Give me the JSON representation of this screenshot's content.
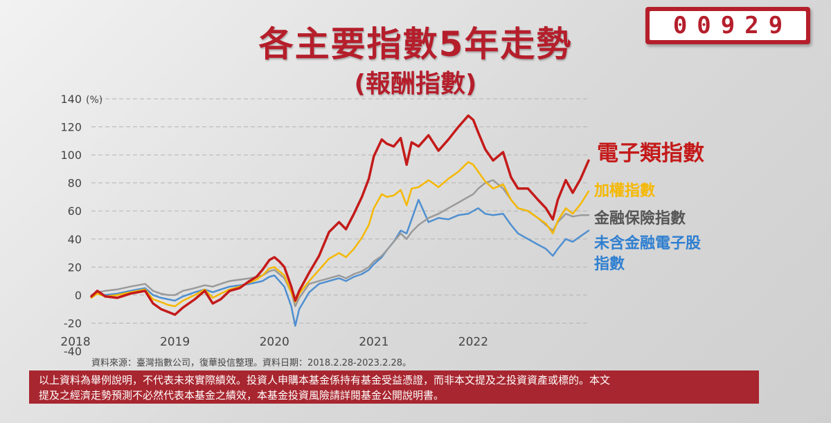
{
  "header": {
    "title": "各主要指數5年走勢",
    "subtitle": "(報酬指數)",
    "fund_code": "00929"
  },
  "chart_data": {
    "type": "line",
    "y_unit_label": "(%)",
    "ylim": [
      -40,
      140
    ],
    "yticks": [
      -40,
      -20,
      0,
      20,
      40,
      60,
      80,
      100,
      120,
      140
    ],
    "xlim": [
      2018.16,
      2023.16
    ],
    "xticks": [
      2018,
      2019,
      2020,
      2021,
      2022
    ],
    "grid": "horizontal dashed",
    "legend": "right",
    "series": [
      {
        "name": "電子類指數",
        "color": "#c41a1a",
        "points": [
          [
            2018.16,
            -1
          ],
          [
            2018.22,
            3
          ],
          [
            2018.3,
            -1
          ],
          [
            2018.42,
            -2
          ],
          [
            2018.55,
            1
          ],
          [
            2018.7,
            3
          ],
          [
            2018.78,
            -6
          ],
          [
            2018.86,
            -10
          ],
          [
            2018.93,
            -12
          ],
          [
            2019.0,
            -14
          ],
          [
            2019.08,
            -9
          ],
          [
            2019.2,
            -3
          ],
          [
            2019.3,
            3
          ],
          [
            2019.38,
            -6
          ],
          [
            2019.46,
            -3
          ],
          [
            2019.55,
            3
          ],
          [
            2019.65,
            5
          ],
          [
            2019.75,
            10
          ],
          [
            2019.82,
            13
          ],
          [
            2019.88,
            18
          ],
          [
            2019.95,
            25
          ],
          [
            2020.0,
            27
          ],
          [
            2020.05,
            24
          ],
          [
            2020.1,
            20
          ],
          [
            2020.17,
            6
          ],
          [
            2020.21,
            -4
          ],
          [
            2020.25,
            3
          ],
          [
            2020.35,
            16
          ],
          [
            2020.45,
            28
          ],
          [
            2020.55,
            45
          ],
          [
            2020.65,
            52
          ],
          [
            2020.72,
            47
          ],
          [
            2020.8,
            58
          ],
          [
            2020.88,
            70
          ],
          [
            2020.95,
            83
          ],
          [
            2021.0,
            99
          ],
          [
            2021.08,
            111
          ],
          [
            2021.13,
            108
          ],
          [
            2021.2,
            106
          ],
          [
            2021.27,
            112
          ],
          [
            2021.33,
            93
          ],
          [
            2021.38,
            109
          ],
          [
            2021.45,
            106
          ],
          [
            2021.55,
            114
          ],
          [
            2021.65,
            103
          ],
          [
            2021.75,
            111
          ],
          [
            2021.85,
            120
          ],
          [
            2021.95,
            128
          ],
          [
            2022.0,
            125
          ],
          [
            2022.05,
            116
          ],
          [
            2022.12,
            104
          ],
          [
            2022.2,
            96
          ],
          [
            2022.3,
            102
          ],
          [
            2022.38,
            84
          ],
          [
            2022.45,
            76
          ],
          [
            2022.55,
            76
          ],
          [
            2022.65,
            68
          ],
          [
            2022.73,
            62
          ],
          [
            2022.8,
            54
          ],
          [
            2022.85,
            68
          ],
          [
            2022.93,
            82
          ],
          [
            2023.0,
            73
          ],
          [
            2023.08,
            83
          ],
          [
            2023.16,
            96
          ]
        ]
      },
      {
        "name": "加權指數",
        "color": "#f5b800",
        "points": [
          [
            2018.16,
            -2
          ],
          [
            2018.22,
            1
          ],
          [
            2018.3,
            -1
          ],
          [
            2018.42,
            0
          ],
          [
            2018.55,
            2
          ],
          [
            2018.7,
            4
          ],
          [
            2018.78,
            -3
          ],
          [
            2018.86,
            -5
          ],
          [
            2018.93,
            -7
          ],
          [
            2019.0,
            -8
          ],
          [
            2019.08,
            -4
          ],
          [
            2019.2,
            0
          ],
          [
            2019.3,
            4
          ],
          [
            2019.38,
            -2
          ],
          [
            2019.46,
            1
          ],
          [
            2019.55,
            4
          ],
          [
            2019.65,
            6
          ],
          [
            2019.75,
            9
          ],
          [
            2019.82,
            11
          ],
          [
            2019.88,
            14
          ],
          [
            2019.95,
            19
          ],
          [
            2020.0,
            20
          ],
          [
            2020.05,
            17
          ],
          [
            2020.1,
            14
          ],
          [
            2020.17,
            2
          ],
          [
            2020.21,
            -5
          ],
          [
            2020.25,
            1
          ],
          [
            2020.35,
            10
          ],
          [
            2020.45,
            18
          ],
          [
            2020.55,
            26
          ],
          [
            2020.65,
            30
          ],
          [
            2020.72,
            27
          ],
          [
            2020.8,
            33
          ],
          [
            2020.88,
            41
          ],
          [
            2020.95,
            50
          ],
          [
            2021.0,
            62
          ],
          [
            2021.08,
            72
          ],
          [
            2021.13,
            70
          ],
          [
            2021.2,
            71
          ],
          [
            2021.27,
            75
          ],
          [
            2021.33,
            64
          ],
          [
            2021.38,
            76
          ],
          [
            2021.45,
            77
          ],
          [
            2021.55,
            82
          ],
          [
            2021.65,
            77
          ],
          [
            2021.75,
            83
          ],
          [
            2021.85,
            88
          ],
          [
            2021.95,
            95
          ],
          [
            2022.0,
            93
          ],
          [
            2022.05,
            88
          ],
          [
            2022.12,
            81
          ],
          [
            2022.2,
            76
          ],
          [
            2022.3,
            79
          ],
          [
            2022.38,
            68
          ],
          [
            2022.45,
            62
          ],
          [
            2022.55,
            60
          ],
          [
            2022.65,
            55
          ],
          [
            2022.73,
            51
          ],
          [
            2022.8,
            44
          ],
          [
            2022.85,
            53
          ],
          [
            2022.93,
            62
          ],
          [
            2023.0,
            58
          ],
          [
            2023.08,
            65
          ],
          [
            2023.16,
            74
          ]
        ]
      },
      {
        "name": "金融保險指數",
        "color": "#9a9a9a",
        "points": [
          [
            2018.16,
            0
          ],
          [
            2018.22,
            2
          ],
          [
            2018.3,
            3
          ],
          [
            2018.42,
            4
          ],
          [
            2018.55,
            6
          ],
          [
            2018.7,
            8
          ],
          [
            2018.78,
            3
          ],
          [
            2018.86,
            1
          ],
          [
            2018.93,
            0
          ],
          [
            2019.0,
            0
          ],
          [
            2019.08,
            3
          ],
          [
            2019.2,
            5
          ],
          [
            2019.3,
            7
          ],
          [
            2019.38,
            6
          ],
          [
            2019.46,
            8
          ],
          [
            2019.55,
            10
          ],
          [
            2019.65,
            11
          ],
          [
            2019.75,
            12
          ],
          [
            2019.82,
            13
          ],
          [
            2019.88,
            14
          ],
          [
            2019.95,
            17
          ],
          [
            2020.0,
            18
          ],
          [
            2020.05,
            15
          ],
          [
            2020.1,
            12
          ],
          [
            2020.17,
            2
          ],
          [
            2020.21,
            -8
          ],
          [
            2020.25,
            -2
          ],
          [
            2020.35,
            8
          ],
          [
            2020.45,
            10
          ],
          [
            2020.55,
            12
          ],
          [
            2020.65,
            14
          ],
          [
            2020.72,
            12
          ],
          [
            2020.8,
            15
          ],
          [
            2020.88,
            17
          ],
          [
            2020.95,
            20
          ],
          [
            2021.0,
            24
          ],
          [
            2021.08,
            28
          ],
          [
            2021.13,
            32
          ],
          [
            2021.2,
            38
          ],
          [
            2021.27,
            44
          ],
          [
            2021.33,
            40
          ],
          [
            2021.38,
            45
          ],
          [
            2021.45,
            50
          ],
          [
            2021.55,
            55
          ],
          [
            2021.65,
            58
          ],
          [
            2021.75,
            62
          ],
          [
            2021.85,
            66
          ],
          [
            2021.95,
            70
          ],
          [
            2022.0,
            72
          ],
          [
            2022.05,
            76
          ],
          [
            2022.12,
            80
          ],
          [
            2022.2,
            82
          ],
          [
            2022.3,
            76
          ],
          [
            2022.38,
            68
          ],
          [
            2022.45,
            62
          ],
          [
            2022.55,
            60
          ],
          [
            2022.65,
            55
          ],
          [
            2022.73,
            50
          ],
          [
            2022.8,
            46
          ],
          [
            2022.85,
            52
          ],
          [
            2022.93,
            58
          ],
          [
            2023.0,
            56
          ],
          [
            2023.08,
            57
          ],
          [
            2023.16,
            57
          ]
        ]
      },
      {
        "name": "未含金融電子股指數",
        "color": "#4f8fd0",
        "points": [
          [
            2018.16,
            -1
          ],
          [
            2018.22,
            1
          ],
          [
            2018.3,
            0
          ],
          [
            2018.42,
            1
          ],
          [
            2018.55,
            3
          ],
          [
            2018.7,
            5
          ],
          [
            2018.78,
            0
          ],
          [
            2018.86,
            -2
          ],
          [
            2018.93,
            -3
          ],
          [
            2019.0,
            -4
          ],
          [
            2019.08,
            -1
          ],
          [
            2019.2,
            2
          ],
          [
            2019.3,
            4
          ],
          [
            2019.38,
            2
          ],
          [
            2019.46,
            4
          ],
          [
            2019.55,
            6
          ],
          [
            2019.65,
            7
          ],
          [
            2019.75,
            8
          ],
          [
            2019.82,
            9
          ],
          [
            2019.88,
            10
          ],
          [
            2019.95,
            13
          ],
          [
            2020.0,
            14
          ],
          [
            2020.05,
            10
          ],
          [
            2020.1,
            6
          ],
          [
            2020.17,
            -8
          ],
          [
            2020.21,
            -22
          ],
          [
            2020.25,
            -10
          ],
          [
            2020.35,
            2
          ],
          [
            2020.45,
            8
          ],
          [
            2020.55,
            10
          ],
          [
            2020.65,
            12
          ],
          [
            2020.72,
            10
          ],
          [
            2020.8,
            13
          ],
          [
            2020.88,
            15
          ],
          [
            2020.95,
            18
          ],
          [
            2021.0,
            22
          ],
          [
            2021.08,
            27
          ],
          [
            2021.13,
            32
          ],
          [
            2021.2,
            38
          ],
          [
            2021.27,
            46
          ],
          [
            2021.33,
            44
          ],
          [
            2021.38,
            54
          ],
          [
            2021.45,
            68
          ],
          [
            2021.55,
            52
          ],
          [
            2021.65,
            55
          ],
          [
            2021.75,
            54
          ],
          [
            2021.85,
            57
          ],
          [
            2021.95,
            58
          ],
          [
            2022.0,
            60
          ],
          [
            2022.05,
            62
          ],
          [
            2022.12,
            58
          ],
          [
            2022.2,
            57
          ],
          [
            2022.3,
            58
          ],
          [
            2022.38,
            50
          ],
          [
            2022.45,
            44
          ],
          [
            2022.55,
            40
          ],
          [
            2022.65,
            36
          ],
          [
            2022.73,
            33
          ],
          [
            2022.8,
            28
          ],
          [
            2022.85,
            33
          ],
          [
            2022.93,
            40
          ],
          [
            2023.0,
            38
          ],
          [
            2023.08,
            42
          ],
          [
            2023.16,
            46
          ]
        ]
      }
    ]
  },
  "legend": [
    {
      "label": "電子類指數",
      "color": "#c41a1a"
    },
    {
      "label": "加權指數",
      "color": "#f5b800"
    },
    {
      "label": "金融保險指數",
      "color": "#555555"
    },
    {
      "label": "未含金融電子股",
      "label2": "指數",
      "color": "#2f7fd0"
    }
  ],
  "footer": {
    "source": "資料來源：臺灣指數公司，復華投信整理。資料日期：2018.2.28-2023.2.28。",
    "disclaimer_line1": "以上資料為舉例說明，不代表未來實際績效。投資人申購本基金係持有基金受益憑證，而非本文提及之投資資產或標的。本文",
    "disclaimer_line2": "提及之經濟走勢預測不必然代表本基金之績效，本基金投資風險請詳閱基金公開說明書。"
  }
}
